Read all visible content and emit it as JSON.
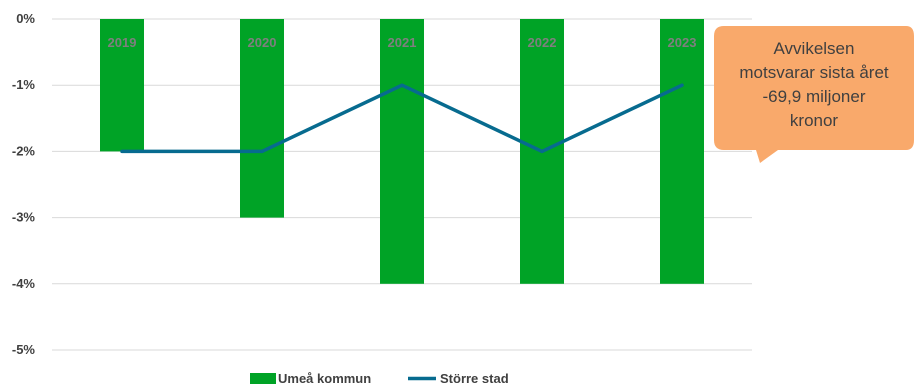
{
  "chart_data": {
    "type": "bar",
    "categories": [
      "2019",
      "2020",
      "2021",
      "2022",
      "2023"
    ],
    "yticks": [
      0,
      -1,
      -2,
      -3,
      -4,
      -5
    ],
    "ytick_labels": [
      "0%",
      "-1%",
      "-2%",
      "-3%",
      "-4%",
      "-5%"
    ],
    "ylim": [
      -5,
      0
    ],
    "unit": "%",
    "grid": true,
    "legend_position": "bottom",
    "series": [
      {
        "name": "Umeå kommun",
        "type": "bar",
        "color": "#00a326",
        "values": [
          -2,
          -3,
          -4,
          -4,
          -4
        ]
      },
      {
        "name": "Större stad",
        "type": "line",
        "color": "#076b8f",
        "values": [
          -2,
          -2,
          -1,
          -2,
          -1
        ]
      }
    ],
    "annotation": {
      "lines": [
        "Avvikelsen",
        "motsvarar sista året",
        "-69,9 miljoner",
        "kronor"
      ],
      "color": "#f9a96b"
    }
  }
}
